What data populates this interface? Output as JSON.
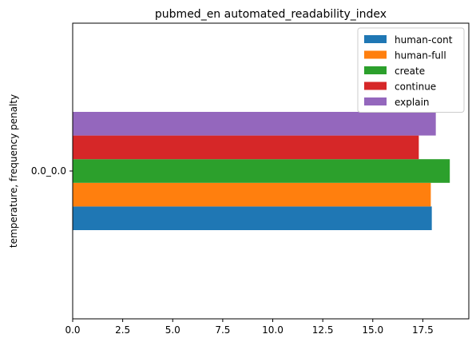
{
  "chart_data": {
    "type": "bar",
    "orientation": "horizontal",
    "title": "pubmed_en automated_readability_index",
    "xlabel": "",
    "ylabel": "temperature, frequency penalty",
    "categories": [
      "0.0_0.0"
    ],
    "xlim": [
      0,
      19.8
    ],
    "xticks": [
      0.0,
      2.5,
      5.0,
      7.5,
      10.0,
      12.5,
      15.0,
      17.5
    ],
    "xtick_labels": [
      "0.0",
      "2.5",
      "5.0",
      "7.5",
      "10.0",
      "12.5",
      "15.0",
      "17.5"
    ],
    "grid": false,
    "legend_position": "top-right",
    "series": [
      {
        "name": "human-cont",
        "color": "#1f77b4",
        "values": [
          17.95
        ]
      },
      {
        "name": "human-full",
        "color": "#ff7f0e",
        "values": [
          17.9
        ]
      },
      {
        "name": "create",
        "color": "#2ca02c",
        "values": [
          18.85
        ]
      },
      {
        "name": "continue",
        "color": "#d62728",
        "values": [
          17.3
        ]
      },
      {
        "name": "explain",
        "color": "#9467bd",
        "values": [
          18.15
        ]
      }
    ]
  }
}
